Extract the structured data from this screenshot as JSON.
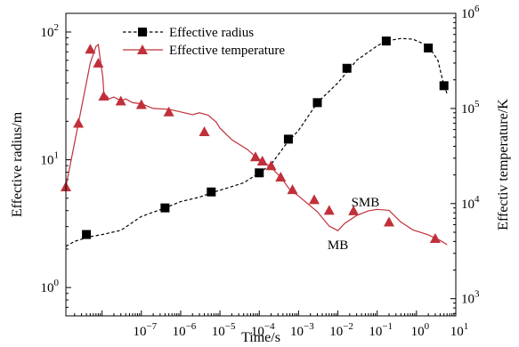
{
  "chart_data": {
    "type": "line",
    "x_scale": "log",
    "xlabel": "Time/s",
    "xlim": [
      1.2e-09,
      10
    ],
    "x_ticks": [
      {
        "v": 1e-07,
        "base": "10",
        "exp": "−7"
      },
      {
        "v": 1e-06,
        "base": "10",
        "exp": "−6"
      },
      {
        "v": 1e-05,
        "base": "10",
        "exp": "−5"
      },
      {
        "v": 0.0001,
        "base": "10",
        "exp": "−4"
      },
      {
        "v": 0.001,
        "base": "10",
        "exp": "−3"
      },
      {
        "v": 0.01,
        "base": "10",
        "exp": "−2"
      },
      {
        "v": 0.1,
        "base": "10",
        "exp": "−1"
      },
      {
        "v": 1,
        "base": "10",
        "exp": "0"
      },
      {
        "v": 10,
        "base": "10",
        "exp": "1"
      }
    ],
    "y_left": {
      "label": "Effective radius/m",
      "scale": "log",
      "lim": [
        0.6,
        140
      ],
      "ticks": [
        {
          "v": 1,
          "base": "10",
          "exp": "0"
        },
        {
          "v": 10,
          "base": "10",
          "exp": "1"
        },
        {
          "v": 100,
          "base": "10",
          "exp": "2"
        }
      ]
    },
    "y_right": {
      "label": "Effectiv temperature/K",
      "scale": "log",
      "lim": [
        660,
        1000000
      ],
      "ticks": [
        {
          "v": 1000,
          "base": "10",
          "exp": "3"
        },
        {
          "v": 10000,
          "base": "10",
          "exp": "4"
        },
        {
          "v": 100000,
          "base": "10",
          "exp": "5"
        },
        {
          "v": 1000000,
          "base": "10",
          "exp": "6"
        }
      ]
    },
    "series": [
      {
        "name": "Effective radius",
        "axis": "left",
        "color": "#000000",
        "line_style": "dashed",
        "marker": "square",
        "line": [
          [
            1.2e-09,
            2.1
          ],
          [
            2e-09,
            2.3
          ],
          [
            5e-09,
            2.5
          ],
          [
            1e-08,
            2.6
          ],
          [
            3e-08,
            2.8
          ],
          [
            1e-07,
            3.6
          ],
          [
            4e-07,
            4.2
          ],
          [
            1e-06,
            4.7
          ],
          [
            3e-06,
            5.1
          ],
          [
            6e-06,
            5.5
          ],
          [
            1.5e-05,
            6.0
          ],
          [
            4e-05,
            6.6
          ],
          [
            0.0001,
            7.9
          ],
          [
            0.0002,
            9.2
          ],
          [
            0.0005,
            13.5
          ],
          [
            0.001,
            17.0
          ],
          [
            0.003,
            28
          ],
          [
            0.01,
            40
          ],
          [
            0.03,
            60
          ],
          [
            0.1,
            78
          ],
          [
            0.17,
            85
          ],
          [
            0.4,
            89
          ],
          [
            0.8,
            88
          ],
          [
            2,
            78
          ],
          [
            3.5,
            60
          ],
          [
            5,
            38
          ],
          [
            6,
            33
          ]
        ],
        "markers": [
          [
            4e-09,
            2.6
          ],
          [
            4e-07,
            4.2
          ],
          [
            6e-06,
            5.6
          ],
          [
            0.0001,
            7.9
          ],
          [
            0.00055,
            14.5
          ],
          [
            0.003,
            28
          ],
          [
            0.017,
            52
          ],
          [
            0.17,
            85
          ],
          [
            2,
            75
          ],
          [
            5,
            38
          ]
        ]
      },
      {
        "name": "Effective temperature",
        "axis": "right",
        "color": "#c0303a",
        "line_style": "solid",
        "marker": "triangle",
        "line": [
          [
            1.2e-09,
            15000
          ],
          [
            2.5e-09,
            70000
          ],
          [
            5e-09,
            300000
          ],
          [
            7e-09,
            450000
          ],
          [
            8e-09,
            470000
          ],
          [
            9e-09,
            330000
          ],
          [
            1.05e-08,
            210000
          ],
          [
            1.1e-08,
            150000
          ],
          [
            1.15e-08,
            128000
          ],
          [
            1.3e-08,
            136000
          ],
          [
            1.5e-08,
            126000
          ],
          [
            2e-08,
            132000
          ],
          [
            3e-08,
            120000
          ],
          [
            4e-08,
            126000
          ],
          [
            6e-08,
            115000
          ],
          [
            1e-07,
            112000
          ],
          [
            2e-07,
            100000
          ],
          [
            5e-07,
            98000
          ],
          [
            1e-06,
            92000
          ],
          [
            2e-06,
            86000
          ],
          [
            3e-06,
            90000
          ],
          [
            5e-06,
            85000
          ],
          [
            8e-06,
            72000
          ],
          [
            1e-05,
            62000
          ],
          [
            2e-05,
            47000
          ],
          [
            5e-05,
            37000
          ],
          [
            8e-05,
            31000
          ],
          [
            0.00012,
            28000
          ],
          [
            0.0002,
            24000
          ],
          [
            0.00035,
            19000
          ],
          [
            0.0006,
            14000
          ],
          [
            0.001,
            12000
          ],
          [
            0.003,
            8200
          ],
          [
            0.006,
            5800
          ],
          [
            0.01,
            5200
          ],
          [
            0.015,
            6200
          ],
          [
            0.03,
            7500
          ],
          [
            0.06,
            8400
          ],
          [
            0.1,
            8700
          ],
          [
            0.2,
            8500
          ],
          [
            0.4,
            6400
          ],
          [
            0.8,
            5300
          ],
          [
            2,
            4700
          ],
          [
            4,
            4100
          ],
          [
            6,
            3700
          ]
        ],
        "markers": [
          [
            1.2e-09,
            15000
          ],
          [
            2.5e-09,
            70000
          ],
          [
            5e-09,
            420000
          ],
          [
            8e-09,
            300000
          ],
          [
            1.1e-08,
            135000
          ],
          [
            3e-08,
            120000
          ],
          [
            1e-07,
            110000
          ],
          [
            5e-07,
            92000
          ],
          [
            4e-06,
            57000
          ],
          [
            8e-05,
            31000
          ],
          [
            0.00012,
            28000
          ],
          [
            0.0002,
            25000
          ],
          [
            0.00035,
            19000
          ],
          [
            0.0007,
            14000
          ],
          [
            0.0025,
            11000
          ],
          [
            0.006,
            8500
          ],
          [
            0.025,
            8400
          ],
          [
            0.2,
            6400
          ],
          [
            3,
            4300
          ]
        ]
      }
    ],
    "annotations": [
      {
        "text": "MB",
        "x": 0.01,
        "y": 2.0,
        "axis": "left"
      },
      {
        "text": "SMB",
        "x": 0.05,
        "y": 4.3,
        "axis": "left"
      }
    ],
    "legend": {
      "position": "top-center"
    },
    "grid": false
  }
}
